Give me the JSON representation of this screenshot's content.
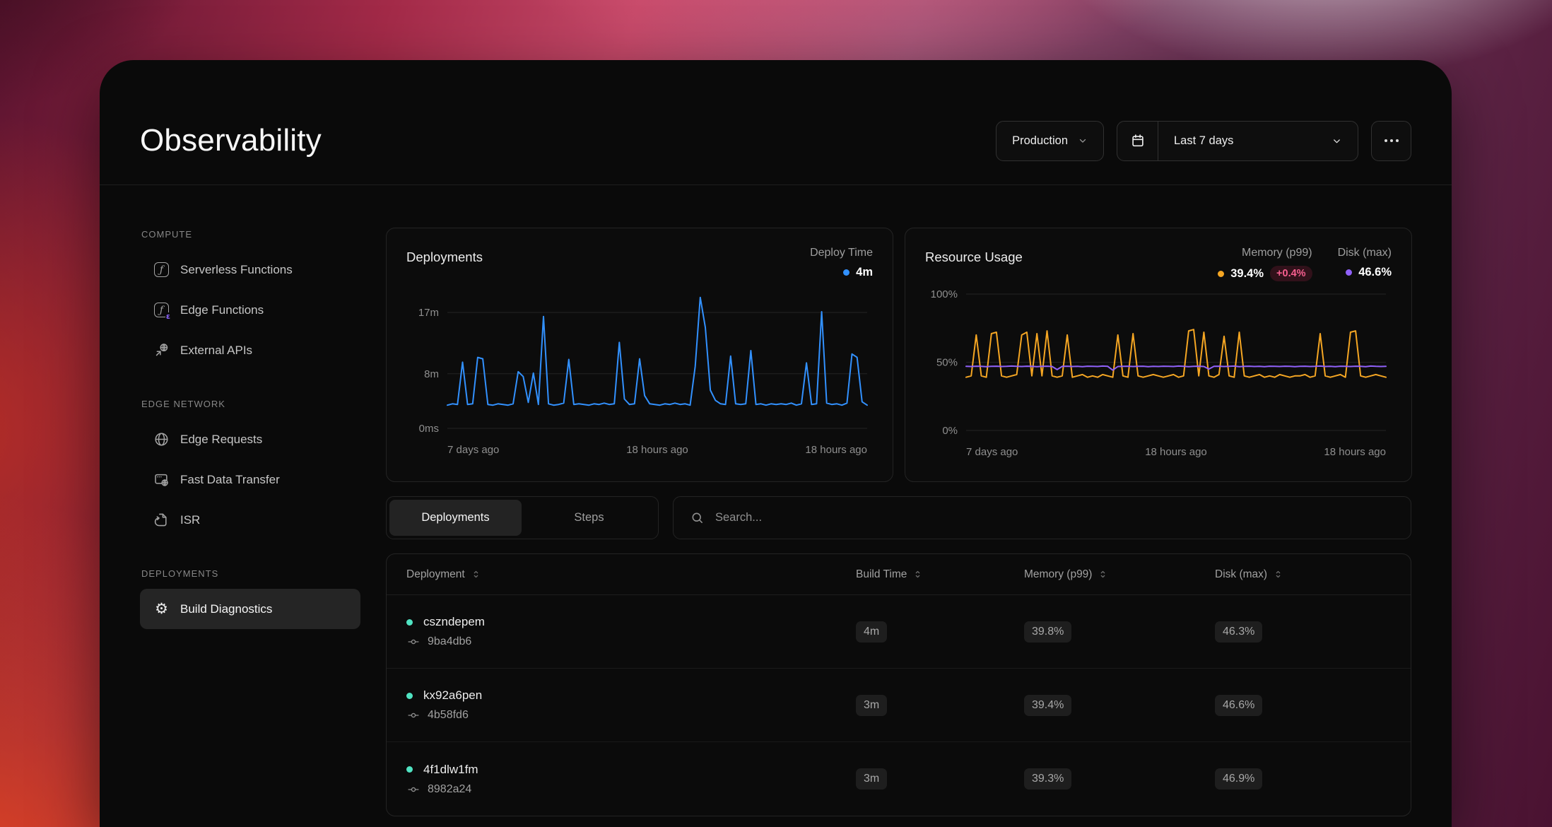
{
  "page": {
    "title": "Observability"
  },
  "header": {
    "environment_selector": {
      "label": "Production"
    },
    "date_range_selector": {
      "label": "Last 7 days"
    }
  },
  "sidebar": {
    "sections": [
      {
        "label": "COMPUTE",
        "items": [
          {
            "label": "Serverless Functions",
            "icon": "function-icon"
          },
          {
            "label": "Edge Functions",
            "icon": "edge-function-icon"
          },
          {
            "label": "External APIs",
            "icon": "external-api-icon"
          }
        ]
      },
      {
        "label": "EDGE NETWORK",
        "items": [
          {
            "label": "Edge Requests",
            "icon": "globe-icon"
          },
          {
            "label": "Fast Data Transfer",
            "icon": "transfer-icon"
          },
          {
            "label": "ISR",
            "icon": "refresh-doc-icon"
          }
        ]
      },
      {
        "label": "DEPLOYMENTS",
        "items": [
          {
            "label": "Build Diagnostics",
            "icon": "gear-icon",
            "selected": true
          }
        ]
      }
    ]
  },
  "colors": {
    "accent_blue": "#3291ff",
    "accent_orange": "#f5a623",
    "accent_purple": "#9061f9",
    "status_teal": "#50e3c2",
    "delta_pink": "#f75f8f",
    "grid": "#232323",
    "tick_text": "#8f8f8f"
  },
  "chart_data": [
    {
      "type": "line",
      "title": "Deployments",
      "xlabels": [
        "7 days ago",
        "18 hours ago",
        "18 hours ago"
      ],
      "yticks": [
        "17m",
        "8m",
        "0ms"
      ],
      "ytick_values": [
        17,
        8,
        0
      ],
      "ymax": 20,
      "series": [
        {
          "name": "Deploy Time",
          "current": "4m",
          "color": "#3291ff",
          "values": [
            3.4,
            3.6,
            3.5,
            9.7,
            3.5,
            3.6,
            10.4,
            10.2,
            3.5,
            3.4,
            3.6,
            3.5,
            3.4,
            3.6,
            8.3,
            7.6,
            3.8,
            8.1,
            3.5,
            16.4,
            3.6,
            3.4,
            3.5,
            3.7,
            10.1,
            3.5,
            3.6,
            3.5,
            3.4,
            3.6,
            3.5,
            3.7,
            3.5,
            3.6,
            12.6,
            4.3,
            3.5,
            3.6,
            10.2,
            4.8,
            3.6,
            3.5,
            3.4,
            3.6,
            3.5,
            3.7,
            3.5,
            3.6,
            3.4,
            9.1,
            19.2,
            14.8,
            5.6,
            4.1,
            3.6,
            3.5,
            10.6,
            3.6,
            3.5,
            3.6,
            11.4,
            3.5,
            3.6,
            3.4,
            3.6,
            3.5,
            3.6,
            3.5,
            3.7,
            3.4,
            3.6,
            9.6,
            3.5,
            3.6,
            17.1,
            3.7,
            3.5,
            3.6,
            3.4,
            3.7,
            10.9,
            10.4,
            3.9,
            3.4
          ]
        }
      ]
    },
    {
      "type": "line",
      "title": "Resource Usage",
      "xlabels": [
        "7 days ago",
        "18 hours ago",
        "18 hours ago"
      ],
      "yticks": [
        "100%",
        "50%",
        "0%"
      ],
      "ytick_values": [
        100,
        50,
        0
      ],
      "ymax": 100,
      "series": [
        {
          "name": "Memory (p99)",
          "current": "39.4%",
          "delta": "+0.4%",
          "color": "#f5a623",
          "values": [
            39,
            40,
            70,
            40,
            39,
            71,
            72,
            40,
            39,
            40,
            41,
            70,
            72,
            40,
            71,
            40,
            73,
            40,
            39,
            40,
            70,
            39,
            40,
            41,
            39,
            40,
            39,
            41,
            40,
            39,
            70,
            40,
            39,
            71,
            40,
            39,
            40,
            41,
            40,
            39,
            40,
            41,
            39,
            40,
            73,
            74,
            40,
            72,
            40,
            39,
            41,
            69,
            40,
            39,
            72,
            40,
            39,
            40,
            41,
            39,
            40,
            39,
            41,
            40,
            39,
            40,
            40,
            41,
            39,
            40,
            71,
            40,
            39,
            40,
            41,
            39,
            72,
            73,
            40,
            39,
            40,
            41,
            40,
            39
          ]
        },
        {
          "name": "Disk (max)",
          "current": "46.6%",
          "color": "#9061f9",
          "values": [
            47,
            46.9,
            47.1,
            47,
            46.8,
            47,
            47.1,
            46.9,
            47,
            47.2,
            47,
            46.9,
            47.1,
            47,
            46.8,
            47,
            47.1,
            46.9,
            44.6,
            47,
            47.1,
            46.9,
            47,
            46.8,
            47.1,
            47,
            46.9,
            47.2,
            47,
            44.2,
            46.9,
            47,
            47.1,
            46.9,
            47,
            47.1,
            46.8,
            47,
            46.9,
            47.1,
            47,
            46.9,
            47.2,
            47,
            46.8,
            47,
            47.1,
            46.9,
            45,
            47,
            47.1,
            46.9,
            47,
            47.2,
            46.8,
            47,
            47.1,
            46.9,
            47,
            46.8,
            47.1,
            47,
            46.9,
            47.1,
            47,
            46.8,
            47,
            47.1,
            46.9,
            47,
            47.2,
            46.9,
            47,
            46.8,
            47.1,
            47,
            46.9,
            47.1,
            47,
            46.8,
            47.2,
            47,
            46.9,
            47
          ]
        }
      ]
    }
  ],
  "toolbar": {
    "tabs": [
      {
        "label": "Deployments",
        "active": true
      },
      {
        "label": "Steps",
        "active": false
      }
    ],
    "search_placeholder": "Search..."
  },
  "table": {
    "columns": [
      "Deployment",
      "Build Time",
      "Memory (p99)",
      "Disk (max)"
    ],
    "rows": [
      {
        "name": "cszndepem",
        "commit": "9ba4db6",
        "build_time": "4m",
        "memory": "39.8%",
        "disk": "46.3%"
      },
      {
        "name": "kx92a6pen",
        "commit": "4b58fd6",
        "build_time": "3m",
        "memory": "39.4%",
        "disk": "46.6%"
      },
      {
        "name": "4f1dlw1fm",
        "commit": "8982a24",
        "build_time": "3m",
        "memory": "39.3%",
        "disk": "46.9%"
      }
    ]
  }
}
